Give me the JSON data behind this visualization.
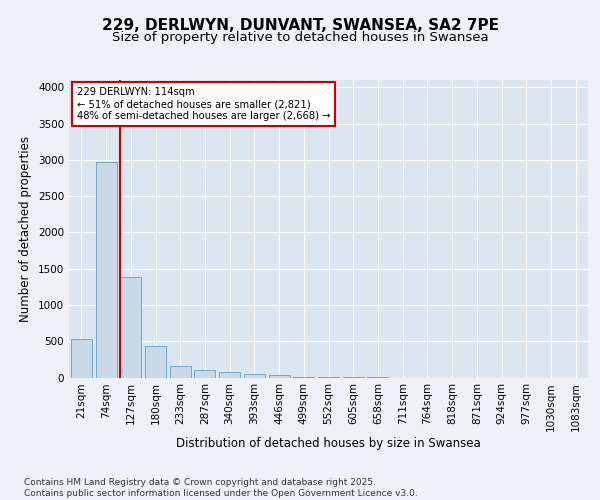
{
  "title1": "229, DERLWYN, DUNVANT, SWANSEA, SA2 7PE",
  "title2": "Size of property relative to detached houses in Swansea",
  "xlabel": "Distribution of detached houses by size in Swansea",
  "ylabel": "Number of detached properties",
  "categories": [
    "21sqm",
    "74sqm",
    "127sqm",
    "180sqm",
    "233sqm",
    "287sqm",
    "340sqm",
    "393sqm",
    "446sqm",
    "499sqm",
    "552sqm",
    "605sqm",
    "658sqm",
    "711sqm",
    "764sqm",
    "818sqm",
    "871sqm",
    "924sqm",
    "977sqm",
    "1030sqm",
    "1083sqm"
  ],
  "values": [
    530,
    2970,
    1380,
    430,
    160,
    100,
    70,
    50,
    40,
    5,
    2,
    1,
    1,
    0,
    0,
    0,
    0,
    0,
    0,
    0,
    0
  ],
  "bar_color": "#c9d9e8",
  "bar_edge_color": "#6fa8c8",
  "vline_x_index": 2,
  "vline_color": "#cc0000",
  "annotation_text": "229 DERLWYN: 114sqm\n← 51% of detached houses are smaller (2,821)\n48% of semi-detached houses are larger (2,668) →",
  "annotation_box_color": "#cc0000",
  "background_color": "#eef2f7",
  "plot_bg_color": "#dce6f0",
  "ylim": [
    0,
    4100
  ],
  "yticks": [
    0,
    500,
    1000,
    1500,
    2000,
    2500,
    3000,
    3500,
    4000
  ],
  "footer_text": "Contains HM Land Registry data © Crown copyright and database right 2025.\nContains public sector information licensed under the Open Government Licence v3.0.",
  "grid_color": "#ffffff",
  "title_fontsize": 11,
  "subtitle_fontsize": 9.5,
  "tick_fontsize": 7.5,
  "label_fontsize": 8.5
}
